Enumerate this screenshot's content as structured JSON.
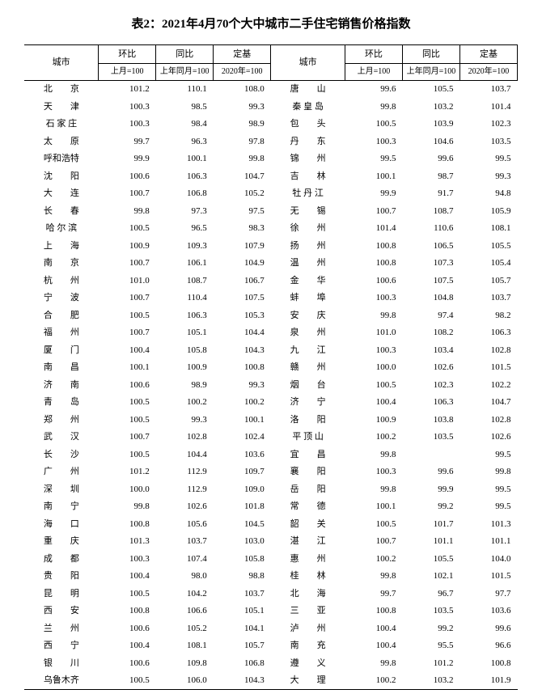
{
  "title": "表2：2021年4月70个大中城市二手住宅销售价格指数",
  "headers": {
    "city": "城市",
    "hb": "环比",
    "tb": "同比",
    "dj": "定基",
    "hb_sub": "上月=100",
    "tb_sub": "上年同月=100",
    "dj_sub": "2020年=100"
  },
  "left_rows": [
    {
      "c": "北　　京",
      "hb": "101.2",
      "tb": "110.1",
      "dj": "108.0"
    },
    {
      "c": "天　　津",
      "hb": "100.3",
      "tb": "98.5",
      "dj": "99.3"
    },
    {
      "c": "石 家 庄",
      "hb": "100.3",
      "tb": "98.4",
      "dj": "98.9"
    },
    {
      "c": "太　　原",
      "hb": "99.7",
      "tb": "96.3",
      "dj": "97.8"
    },
    {
      "c": "呼和浩特",
      "hb": "99.9",
      "tb": "100.1",
      "dj": "99.8"
    },
    {
      "c": "沈　　阳",
      "hb": "100.6",
      "tb": "106.3",
      "dj": "104.7"
    },
    {
      "c": "大　　连",
      "hb": "100.7",
      "tb": "106.8",
      "dj": "105.2"
    },
    {
      "c": "长　　春",
      "hb": "99.8",
      "tb": "97.3",
      "dj": "97.5"
    },
    {
      "c": "哈 尔 滨",
      "hb": "100.5",
      "tb": "96.5",
      "dj": "98.3"
    },
    {
      "c": "上　　海",
      "hb": "100.9",
      "tb": "109.3",
      "dj": "107.9"
    },
    {
      "c": "南　　京",
      "hb": "100.7",
      "tb": "106.1",
      "dj": "104.9"
    },
    {
      "c": "杭　　州",
      "hb": "101.0",
      "tb": "108.7",
      "dj": "106.7"
    },
    {
      "c": "宁　　波",
      "hb": "100.7",
      "tb": "110.4",
      "dj": "107.5"
    },
    {
      "c": "合　　肥",
      "hb": "100.5",
      "tb": "106.3",
      "dj": "105.3"
    },
    {
      "c": "福　　州",
      "hb": "100.7",
      "tb": "105.1",
      "dj": "104.4"
    },
    {
      "c": "厦　　门",
      "hb": "100.4",
      "tb": "105.8",
      "dj": "104.3"
    },
    {
      "c": "南　　昌",
      "hb": "100.1",
      "tb": "100.9",
      "dj": "100.8"
    },
    {
      "c": "济　　南",
      "hb": "100.6",
      "tb": "98.9",
      "dj": "99.3"
    },
    {
      "c": "青　　岛",
      "hb": "100.5",
      "tb": "100.2",
      "dj": "100.2"
    },
    {
      "c": "郑　　州",
      "hb": "100.5",
      "tb": "99.3",
      "dj": "100.1"
    },
    {
      "c": "武　　汉",
      "hb": "100.7",
      "tb": "102.8",
      "dj": "102.4"
    },
    {
      "c": "长　　沙",
      "hb": "100.5",
      "tb": "104.4",
      "dj": "103.6"
    },
    {
      "c": "广　　州",
      "hb": "101.2",
      "tb": "112.9",
      "dj": "109.7"
    },
    {
      "c": "深　　圳",
      "hb": "100.0",
      "tb": "112.9",
      "dj": "109.0"
    },
    {
      "c": "南　　宁",
      "hb": "99.8",
      "tb": "102.6",
      "dj": "101.8"
    },
    {
      "c": "海　　口",
      "hb": "100.8",
      "tb": "105.6",
      "dj": "104.5"
    },
    {
      "c": "重　　庆",
      "hb": "101.3",
      "tb": "103.7",
      "dj": "103.0"
    },
    {
      "c": "成　　都",
      "hb": "100.3",
      "tb": "107.4",
      "dj": "105.8"
    },
    {
      "c": "贵　　阳",
      "hb": "100.4",
      "tb": "98.0",
      "dj": "98.8"
    },
    {
      "c": "昆　　明",
      "hb": "100.5",
      "tb": "104.2",
      "dj": "103.7"
    },
    {
      "c": "西　　安",
      "hb": "100.8",
      "tb": "106.6",
      "dj": "105.1"
    },
    {
      "c": "兰　　州",
      "hb": "100.6",
      "tb": "105.2",
      "dj": "104.1"
    },
    {
      "c": "西　　宁",
      "hb": "100.4",
      "tb": "108.1",
      "dj": "105.7"
    },
    {
      "c": "银　　川",
      "hb": "100.6",
      "tb": "109.8",
      "dj": "106.8"
    },
    {
      "c": "乌鲁木齐",
      "hb": "100.5",
      "tb": "106.0",
      "dj": "104.3"
    }
  ],
  "right_rows": [
    {
      "c": "唐　　山",
      "hb": "99.6",
      "tb": "105.5",
      "dj": "103.7"
    },
    {
      "c": "秦 皇 岛",
      "hb": "99.8",
      "tb": "103.2",
      "dj": "101.4"
    },
    {
      "c": "包　　头",
      "hb": "100.5",
      "tb": "103.9",
      "dj": "102.3"
    },
    {
      "c": "丹　　东",
      "hb": "100.3",
      "tb": "104.6",
      "dj": "103.5"
    },
    {
      "c": "锦　　州",
      "hb": "99.5",
      "tb": "99.6",
      "dj": "99.5"
    },
    {
      "c": "吉　　林",
      "hb": "100.1",
      "tb": "98.7",
      "dj": "99.3"
    },
    {
      "c": "牡 丹 江",
      "hb": "99.9",
      "tb": "91.7",
      "dj": "94.8"
    },
    {
      "c": "无　　锡",
      "hb": "100.7",
      "tb": "108.7",
      "dj": "105.9"
    },
    {
      "c": "徐　　州",
      "hb": "101.4",
      "tb": "110.6",
      "dj": "108.1"
    },
    {
      "c": "扬　　州",
      "hb": "100.8",
      "tb": "106.5",
      "dj": "105.5"
    },
    {
      "c": "温　　州",
      "hb": "100.8",
      "tb": "107.3",
      "dj": "105.4"
    },
    {
      "c": "金　　华",
      "hb": "100.6",
      "tb": "107.5",
      "dj": "105.7"
    },
    {
      "c": "蚌　　埠",
      "hb": "100.3",
      "tb": "104.8",
      "dj": "103.7"
    },
    {
      "c": "安　　庆",
      "hb": "99.8",
      "tb": "97.4",
      "dj": "98.2"
    },
    {
      "c": "泉　　州",
      "hb": "101.0",
      "tb": "108.2",
      "dj": "106.3"
    },
    {
      "c": "九　　江",
      "hb": "100.3",
      "tb": "103.4",
      "dj": "102.8"
    },
    {
      "c": "赣　　州",
      "hb": "100.0",
      "tb": "102.6",
      "dj": "101.5"
    },
    {
      "c": "烟　　台",
      "hb": "100.5",
      "tb": "102.3",
      "dj": "102.2"
    },
    {
      "c": "济　　宁",
      "hb": "100.4",
      "tb": "106.3",
      "dj": "104.7"
    },
    {
      "c": "洛　　阳",
      "hb": "100.9",
      "tb": "103.8",
      "dj": "102.8"
    },
    {
      "c": "平 顶 山",
      "hb": "100.2",
      "tb": "103.5",
      "dj": "102.6"
    },
    {
      "c": "宜　　昌",
      "hb": "99.8",
      "tb": "",
      "dj": "99.5"
    },
    {
      "c": "襄　　阳",
      "hb": "100.3",
      "tb": "99.6",
      "dj": "99.8"
    },
    {
      "c": "岳　　阳",
      "hb": "99.8",
      "tb": "99.9",
      "dj": "99.5"
    },
    {
      "c": "常　　德",
      "hb": "100.1",
      "tb": "99.2",
      "dj": "99.5"
    },
    {
      "c": "韶　　关",
      "hb": "100.5",
      "tb": "101.7",
      "dj": "101.3"
    },
    {
      "c": "湛　　江",
      "hb": "100.7",
      "tb": "101.1",
      "dj": "101.1"
    },
    {
      "c": "惠　　州",
      "hb": "100.2",
      "tb": "105.5",
      "dj": "104.0"
    },
    {
      "c": "桂　　林",
      "hb": "99.8",
      "tb": "102.1",
      "dj": "101.5"
    },
    {
      "c": "北　　海",
      "hb": "99.7",
      "tb": "96.7",
      "dj": "97.7"
    },
    {
      "c": "三　　亚",
      "hb": "100.8",
      "tb": "103.5",
      "dj": "103.6"
    },
    {
      "c": "泸　　州",
      "hb": "100.4",
      "tb": "99.2",
      "dj": "99.6"
    },
    {
      "c": "南　　充",
      "hb": "100.4",
      "tb": "95.5",
      "dj": "96.6"
    },
    {
      "c": "遵　　义",
      "hb": "99.8",
      "tb": "101.2",
      "dj": "100.8"
    },
    {
      "c": "大　　理",
      "hb": "100.2",
      "tb": "103.2",
      "dj": "101.9"
    }
  ],
  "colors": {
    "background": "#ffffff",
    "text": "#000000",
    "border": "#000000"
  },
  "typography": {
    "title_fontsize": 15,
    "body_fontsize": 11,
    "header_sub_fontsize": 10,
    "font_family": "SimSun"
  }
}
